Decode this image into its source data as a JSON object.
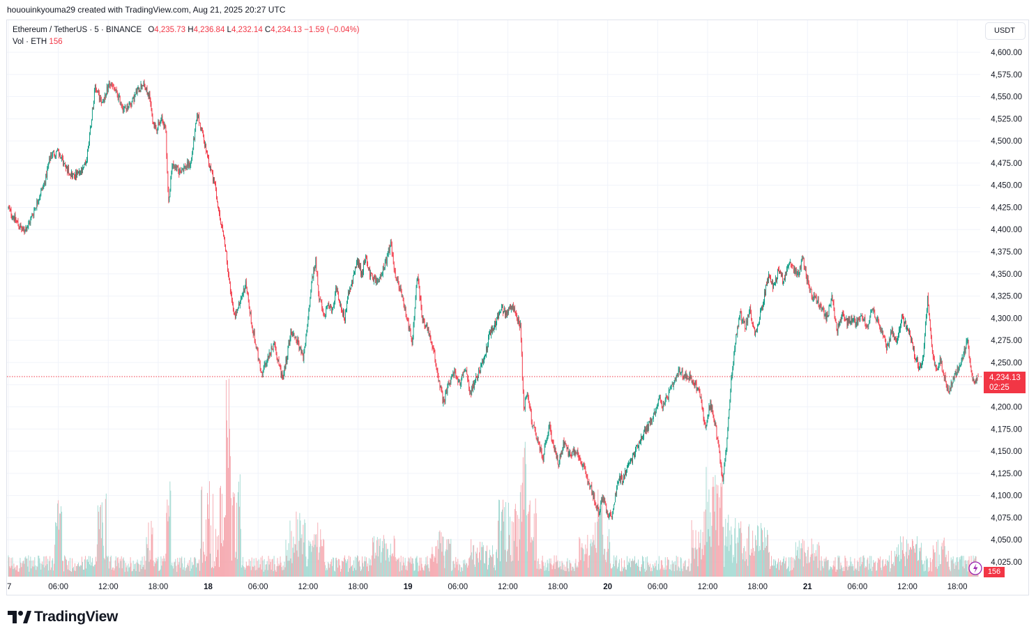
{
  "header": {
    "credit": "hououinkyouma29 created with TradingView.com, Aug 21, 2025 20:27 UTC"
  },
  "legend": {
    "symbol": "Ethereum / TetherUS · 5 · BINANCE",
    "open_label": "O",
    "open": "4,235.73",
    "high_label": "H",
    "high": "4,236.84",
    "low_label": "L",
    "low": "4,232.14",
    "close_label": "C",
    "close": "4,234.13",
    "change": "−1.59 (−0.04%)",
    "volume_label": "Vol · ETH",
    "volume": "156"
  },
  "price_scale": {
    "unit": "USDT",
    "last_price": "4,234.13",
    "countdown": "02:25",
    "volume_last": "156"
  },
  "branding": {
    "logo_text": "TradingView"
  },
  "colors": {
    "up": "#089981",
    "down": "#f23645",
    "vol_up": "#9dd7cf",
    "vol_down": "#f5a6ad",
    "grid": "#f0f3fa",
    "price_line": "#f23645"
  },
  "chart_data": {
    "type": "candlestick",
    "title": "Ethereum / TetherUS · 5 · BINANCE",
    "ylim": [
      4000,
      4612
    ],
    "y_ticks": [
      "4,600.00",
      "4,575.00",
      "4,550.00",
      "4,525.00",
      "4,500.00",
      "4,475.00",
      "4,450.00",
      "4,425.00",
      "4,400.00",
      "4,375.00",
      "4,350.00",
      "4,325.00",
      "4,300.00",
      "4,275.00",
      "4,250.00",
      "4,225.00",
      "4,200.00",
      "4,175.00",
      "4,150.00",
      "4,125.00",
      "4,100.00",
      "4,075.00",
      "4,050.00",
      "4,025.00"
    ],
    "y_tick_values": [
      4600,
      4575,
      4550,
      4525,
      4500,
      4475,
      4450,
      4425,
      4400,
      4375,
      4350,
      4325,
      4300,
      4275,
      4250,
      4225,
      4200,
      4175,
      4150,
      4125,
      4100,
      4075,
      4050,
      4025
    ],
    "x_ticks": [
      {
        "label": "7",
        "hour": -24,
        "bold": false
      },
      {
        "label": "06:00",
        "hour": -18,
        "bold": false
      },
      {
        "label": "12:00",
        "hour": -12,
        "bold": false
      },
      {
        "label": "18:00",
        "hour": -6,
        "bold": false
      },
      {
        "label": "18",
        "hour": 0,
        "bold": true
      },
      {
        "label": "06:00",
        "hour": 6,
        "bold": false
      },
      {
        "label": "12:00",
        "hour": 12,
        "bold": false
      },
      {
        "label": "18:00",
        "hour": 18,
        "bold": false
      },
      {
        "label": "19",
        "hour": 24,
        "bold": true
      },
      {
        "label": "06:00",
        "hour": 30,
        "bold": false
      },
      {
        "label": "12:00",
        "hour": 36,
        "bold": false
      },
      {
        "label": "18:00",
        "hour": 42,
        "bold": false
      },
      {
        "label": "20",
        "hour": 48,
        "bold": true
      },
      {
        "label": "06:00",
        "hour": 54,
        "bold": false
      },
      {
        "label": "12:00",
        "hour": 60,
        "bold": false
      },
      {
        "label": "18:00",
        "hour": 66,
        "bold": false
      },
      {
        "label": "21",
        "hour": 72,
        "bold": true
      },
      {
        "label": "06:00",
        "hour": 78,
        "bold": false
      },
      {
        "label": "12:00",
        "hour": 84,
        "bold": false
      },
      {
        "label": "18:00",
        "hour": 90,
        "bold": false
      }
    ],
    "x_range_hours": [
      -24.15,
      92.7
    ],
    "last_price_value": 4234.13,
    "price_path": [
      [
        -24.0,
        4425
      ],
      [
        -23.0,
        4410
      ],
      [
        -22.2,
        4398
      ],
      [
        -21.5,
        4405
      ],
      [
        -20.5,
        4430
      ],
      [
        -19.5,
        4455
      ],
      [
        -18.8,
        4485
      ],
      [
        -18.0,
        4488
      ],
      [
        -17.0,
        4470
      ],
      [
        -16.0,
        4460
      ],
      [
        -15.0,
        4465
      ],
      [
        -14.5,
        4480
      ],
      [
        -14.0,
        4520
      ],
      [
        -13.5,
        4560
      ],
      [
        -13.0,
        4550
      ],
      [
        -12.5,
        4545
      ],
      [
        -11.8,
        4565
      ],
      [
        -11.0,
        4555
      ],
      [
        -10.0,
        4535
      ],
      [
        -9.0,
        4545
      ],
      [
        -8.5,
        4555
      ],
      [
        -7.8,
        4565
      ],
      [
        -7.0,
        4550
      ],
      [
        -6.5,
        4520
      ],
      [
        -6.0,
        4515
      ],
      [
        -5.5,
        4525
      ],
      [
        -5.0,
        4510
      ],
      [
        -4.7,
        4430
      ],
      [
        -4.2,
        4475
      ],
      [
        -3.5,
        4465
      ],
      [
        -2.8,
        4470
      ],
      [
        -2.0,
        4475
      ],
      [
        -1.5,
        4510
      ],
      [
        -1.2,
        4530
      ],
      [
        -0.5,
        4505
      ],
      [
        0.0,
        4480
      ],
      [
        0.8,
        4455
      ],
      [
        1.5,
        4410
      ],
      [
        2.0,
        4390
      ],
      [
        2.6,
        4345
      ],
      [
        3.2,
        4300
      ],
      [
        4.0,
        4320
      ],
      [
        4.6,
        4340
      ],
      [
        5.2,
        4300
      ],
      [
        5.8,
        4270
      ],
      [
        6.5,
        4235
      ],
      [
        7.2,
        4255
      ],
      [
        8.0,
        4270
      ],
      [
        8.6,
        4250
      ],
      [
        9.0,
        4230
      ],
      [
        9.5,
        4255
      ],
      [
        10.0,
        4285
      ],
      [
        10.8,
        4275
      ],
      [
        11.5,
        4255
      ],
      [
        12.0,
        4290
      ],
      [
        12.5,
        4340
      ],
      [
        13.0,
        4365
      ],
      [
        13.4,
        4325
      ],
      [
        14.0,
        4300
      ],
      [
        14.5,
        4320
      ],
      [
        15.0,
        4305
      ],
      [
        15.5,
        4335
      ],
      [
        16.0,
        4315
      ],
      [
        16.5,
        4300
      ],
      [
        17.0,
        4330
      ],
      [
        17.5,
        4345
      ],
      [
        18.0,
        4365
      ],
      [
        18.5,
        4350
      ],
      [
        19.0,
        4370
      ],
      [
        19.5,
        4350
      ],
      [
        20.5,
        4340
      ],
      [
        21.5,
        4365
      ],
      [
        22.0,
        4385
      ],
      [
        22.5,
        4350
      ],
      [
        23.2,
        4330
      ],
      [
        24.0,
        4300
      ],
      [
        24.6,
        4270
      ],
      [
        25.2,
        4350
      ],
      [
        25.8,
        4300
      ],
      [
        26.5,
        4285
      ],
      [
        27.2,
        4260
      ],
      [
        27.8,
        4230
      ],
      [
        28.3,
        4205
      ],
      [
        29.0,
        4225
      ],
      [
        29.7,
        4240
      ],
      [
        30.3,
        4225
      ],
      [
        31.0,
        4245
      ],
      [
        31.6,
        4215
      ],
      [
        32.2,
        4230
      ],
      [
        32.8,
        4245
      ],
      [
        33.4,
        4260
      ],
      [
        34.0,
        4285
      ],
      [
        34.6,
        4295
      ],
      [
        35.3,
        4310
      ],
      [
        35.9,
        4305
      ],
      [
        36.5,
        4315
      ],
      [
        37.2,
        4300
      ],
      [
        37.6,
        4290
      ],
      [
        38.0,
        4200
      ],
      [
        38.5,
        4215
      ],
      [
        39.0,
        4180
      ],
      [
        39.6,
        4165
      ],
      [
        40.3,
        4140
      ],
      [
        41.0,
        4180
      ],
      [
        41.6,
        4155
      ],
      [
        42.2,
        4135
      ],
      [
        42.8,
        4160
      ],
      [
        43.5,
        4145
      ],
      [
        44.2,
        4150
      ],
      [
        44.8,
        4140
      ],
      [
        45.4,
        4125
      ],
      [
        46.0,
        4110
      ],
      [
        46.5,
        4095
      ],
      [
        47.0,
        4080
      ],
      [
        47.5,
        4100
      ],
      [
        48.0,
        4080
      ],
      [
        48.5,
        4075
      ],
      [
        49.0,
        4100
      ],
      [
        49.5,
        4120
      ],
      [
        50.0,
        4120
      ],
      [
        50.6,
        4135
      ],
      [
        51.2,
        4145
      ],
      [
        51.8,
        4160
      ],
      [
        52.4,
        4170
      ],
      [
        53.0,
        4180
      ],
      [
        53.6,
        4190
      ],
      [
        54.2,
        4210
      ],
      [
        54.8,
        4200
      ],
      [
        55.4,
        4215
      ],
      [
        56.0,
        4225
      ],
      [
        56.7,
        4240
      ],
      [
        57.3,
        4235
      ],
      [
        58.0,
        4235
      ],
      [
        58.6,
        4225
      ],
      [
        59.2,
        4215
      ],
      [
        59.8,
        4175
      ],
      [
        60.4,
        4205
      ],
      [
        60.9,
        4185
      ],
      [
        61.4,
        4155
      ],
      [
        61.9,
        4115
      ],
      [
        62.4,
        4160
      ],
      [
        62.9,
        4230
      ],
      [
        63.5,
        4280
      ],
      [
        64.0,
        4305
      ],
      [
        64.6,
        4290
      ],
      [
        65.2,
        4310
      ],
      [
        65.8,
        4280
      ],
      [
        66.3,
        4300
      ],
      [
        66.8,
        4320
      ],
      [
        67.4,
        4350
      ],
      [
        68.0,
        4335
      ],
      [
        68.6,
        4355
      ],
      [
        69.2,
        4340
      ],
      [
        69.8,
        4365
      ],
      [
        70.4,
        4355
      ],
      [
        71.0,
        4350
      ],
      [
        71.5,
        4370
      ],
      [
        72.0,
        4345
      ],
      [
        72.6,
        4325
      ],
      [
        73.2,
        4320
      ],
      [
        73.8,
        4310
      ],
      [
        74.4,
        4300
      ],
      [
        75.0,
        4325
      ],
      [
        75.6,
        4285
      ],
      [
        76.2,
        4305
      ],
      [
        76.8,
        4295
      ],
      [
        77.4,
        4300
      ],
      [
        78.0,
        4295
      ],
      [
        78.6,
        4305
      ],
      [
        79.2,
        4290
      ],
      [
        79.8,
        4310
      ],
      [
        80.4,
        4300
      ],
      [
        81.0,
        4285
      ],
      [
        81.6,
        4265
      ],
      [
        82.2,
        4285
      ],
      [
        82.8,
        4275
      ],
      [
        83.4,
        4300
      ],
      [
        84.0,
        4290
      ],
      [
        84.6,
        4275
      ],
      [
        85.0,
        4255
      ],
      [
        85.5,
        4245
      ],
      [
        86.0,
        4255
      ],
      [
        86.5,
        4325
      ],
      [
        87.0,
        4270
      ],
      [
        87.5,
        4240
      ],
      [
        88.0,
        4255
      ],
      [
        88.5,
        4235
      ],
      [
        89.0,
        4215
      ],
      [
        89.5,
        4230
      ],
      [
        90.0,
        4240
      ],
      [
        90.5,
        4250
      ],
      [
        91.0,
        4265
      ],
      [
        91.3,
        4275
      ],
      [
        91.7,
        4240
      ],
      [
        92.1,
        4225
      ],
      [
        92.5,
        4234.13
      ]
    ],
    "volume_profile": "low baseline (~5–25 ETH bars) with spikes near 06:00 on the 17th, 12:00 on the 17th, 18:00 on the 17th, and larger clusters around 00:00–06:00 on the 18th, 12:00–18:00 on the 19th, 12:00–18:00 on the 20th, and 12:00–18:00 on the 21st; last bar 156"
  }
}
